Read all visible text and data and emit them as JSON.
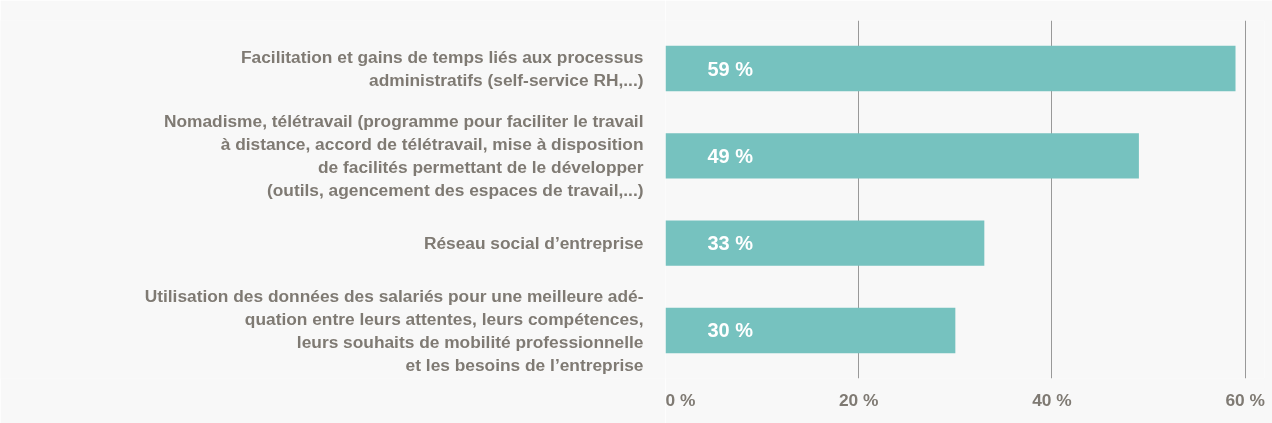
{
  "chart_data": {
    "type": "bar",
    "orientation": "horizontal",
    "categories": [
      "Facilitation et gains de temps liés aux processus\nadministratifs (self-service RH,...)",
      "Nomadisme, télétravail (programme pour faciliter le travail\nà distance, accord de télétravail, mise à disposition\nde facilités permettant de le développer\n(outils, agencement des espaces de travail,...)",
      "Réseau social d’entreprise",
      "Utilisation des données des salariés pour une meilleure adé-\nquation entre leurs attentes, leurs compétences,\nleurs souhaits de mobilité professionnelle\net les besoins de l’entreprise"
    ],
    "values": [
      59,
      49,
      33,
      30
    ],
    "value_labels": [
      "59 %",
      "49 %",
      "33 %",
      "30 %"
    ],
    "color": "#76c2bf",
    "xlim": [
      0,
      62
    ],
    "xticks": [
      {
        "value": 0,
        "label": "0 %"
      },
      {
        "value": 20,
        "label": "20 %"
      },
      {
        "value": 40,
        "label": "40 %"
      },
      {
        "value": 60,
        "label": "60 %"
      }
    ],
    "grid": "x"
  }
}
